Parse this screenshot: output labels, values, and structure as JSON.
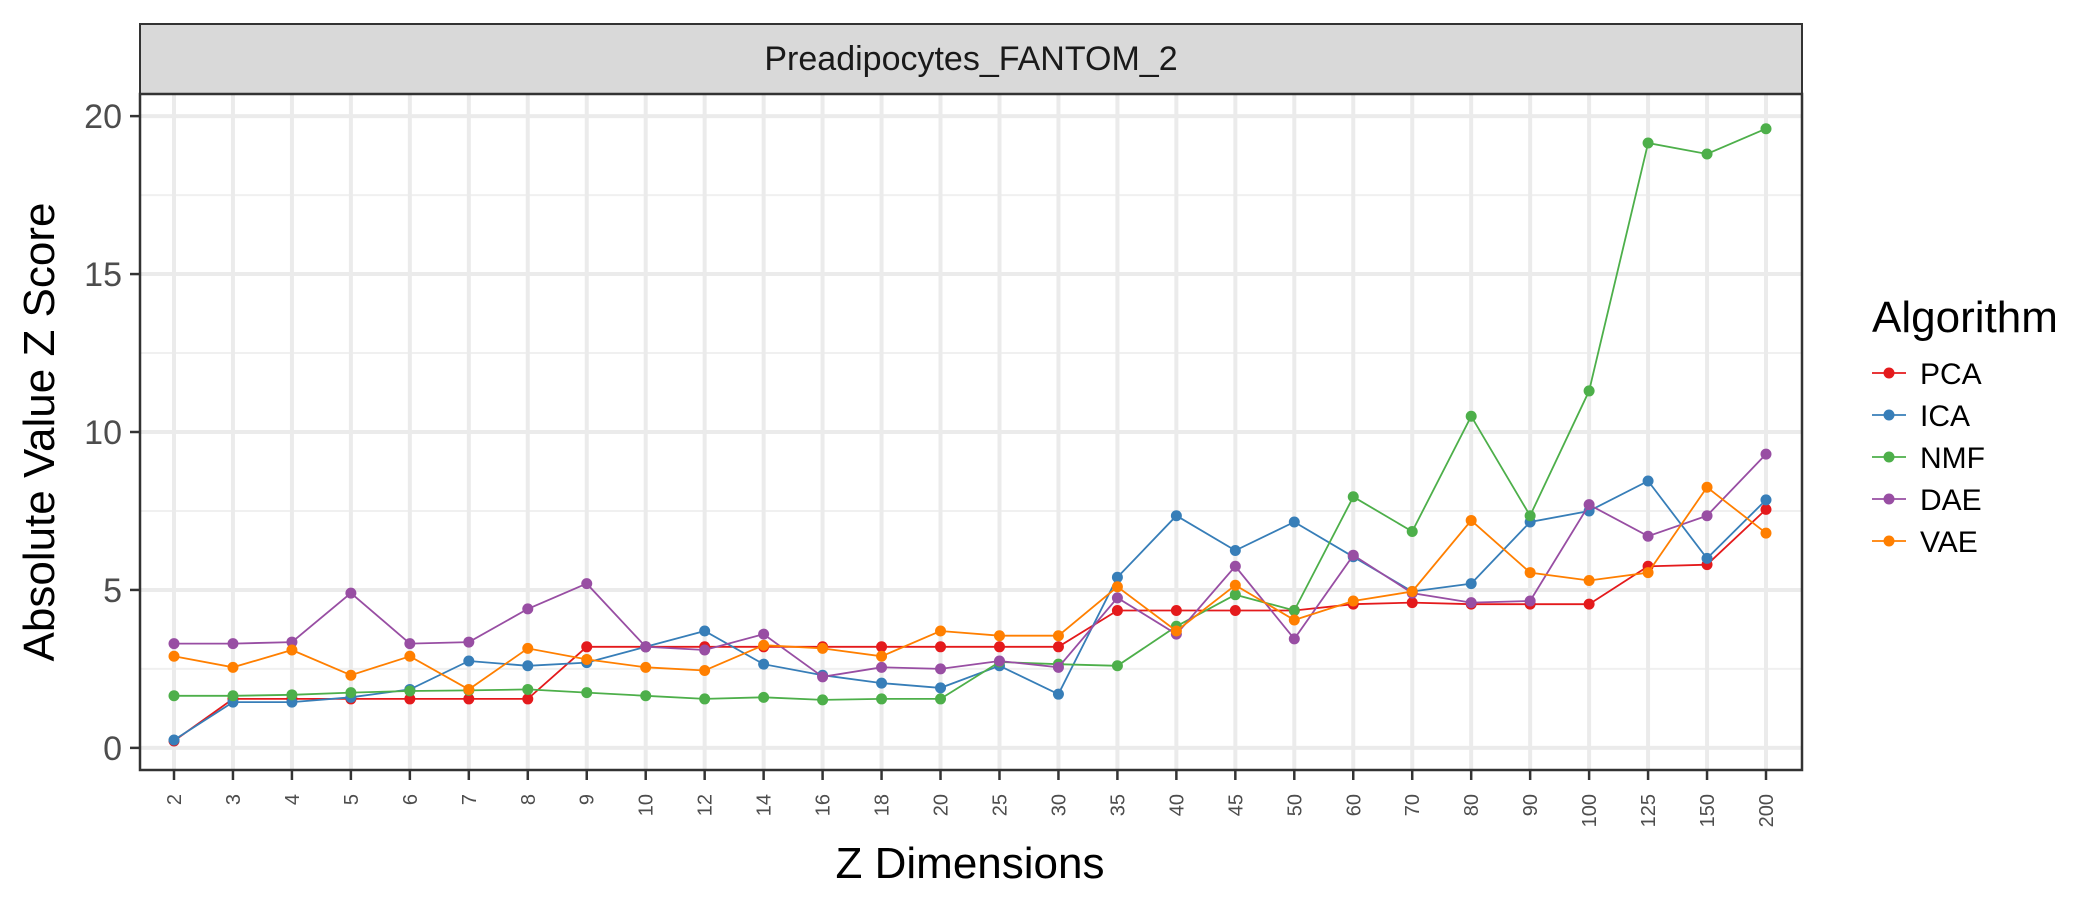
{
  "chart_data": {
    "type": "line",
    "facet_title": "Preadipocytes_FANTOM_2",
    "xlabel": "Z Dimensions",
    "ylabel": "Absolute Value Z Score",
    "x_type": "categorical",
    "categories": [
      "2",
      "3",
      "4",
      "5",
      "6",
      "7",
      "8",
      "9",
      "10",
      "12",
      "14",
      "16",
      "18",
      "20",
      "25",
      "30",
      "35",
      "40",
      "45",
      "50",
      "60",
      "70",
      "80",
      "90",
      "100",
      "125",
      "150",
      "200"
    ],
    "ylim": [
      -0.7,
      20.7
    ],
    "yticks": [
      0,
      5,
      10,
      15,
      20
    ],
    "grid": true,
    "legend": {
      "title": "Algorithm",
      "position": "right"
    },
    "series": [
      {
        "name": "PCA",
        "color": "#e41a1c",
        "values": [
          0.22,
          1.55,
          1.55,
          1.55,
          1.55,
          1.55,
          1.55,
          3.2,
          3.2,
          3.2,
          3.2,
          3.2,
          3.2,
          3.2,
          3.2,
          3.2,
          4.35,
          4.35,
          4.35,
          4.35,
          4.55,
          4.6,
          4.55,
          4.55,
          4.55,
          5.75,
          5.8,
          7.55
        ]
      },
      {
        "name": "ICA",
        "color": "#377eb8",
        "values": [
          0.25,
          1.45,
          1.45,
          1.6,
          1.85,
          2.75,
          2.6,
          2.7,
          3.2,
          3.7,
          2.65,
          2.3,
          2.05,
          1.9,
          2.6,
          1.7,
          5.4,
          7.35,
          6.25,
          7.15,
          6.05,
          4.95,
          5.2,
          7.15,
          7.5,
          8.45,
          6.0,
          7.85
        ]
      },
      {
        "name": "NMF",
        "color": "#4daf4a",
        "values": [
          1.65,
          1.65,
          1.68,
          1.75,
          1.8,
          1.82,
          1.85,
          1.75,
          1.65,
          1.55,
          1.6,
          1.52,
          1.55,
          1.55,
          2.72,
          2.65,
          2.6,
          3.85,
          4.85,
          4.35,
          7.95,
          6.85,
          10.5,
          7.35,
          11.3,
          19.15,
          18.8,
          19.6
        ]
      },
      {
        "name": "DAE",
        "color": "#984ea3",
        "values": [
          3.3,
          3.3,
          3.35,
          4.9,
          3.3,
          3.35,
          4.4,
          5.2,
          3.2,
          3.1,
          3.6,
          2.25,
          2.55,
          2.5,
          2.75,
          2.55,
          4.75,
          3.6,
          5.75,
          3.45,
          6.1,
          4.9,
          4.6,
          4.65,
          7.7,
          6.7,
          7.35,
          9.3
        ]
      },
      {
        "name": "VAE",
        "color": "#ff7f00",
        "values": [
          2.9,
          2.55,
          3.1,
          2.3,
          2.9,
          1.85,
          3.15,
          2.8,
          2.55,
          2.45,
          3.25,
          3.15,
          2.9,
          3.7,
          3.55,
          3.55,
          5.1,
          3.7,
          5.15,
          4.05,
          4.65,
          4.95,
          7.2,
          5.55,
          5.3,
          5.55,
          8.25,
          6.8
        ]
      }
    ]
  }
}
